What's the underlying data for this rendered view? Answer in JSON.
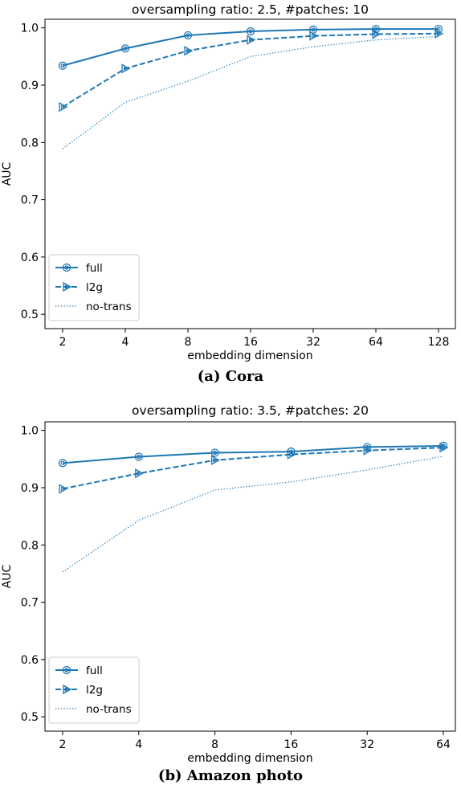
{
  "figures": [
    {
      "caption": "(a) Cora"
    },
    {
      "caption": "(b) Amazon photo"
    }
  ],
  "chart_data": [
    {
      "type": "line",
      "title": "oversampling ratio: 2.5, #patches: 10",
      "xlabel": "embedding dimension",
      "ylabel": "AUC",
      "categories": [
        "2",
        "4",
        "8",
        "16",
        "32",
        "64",
        "128"
      ],
      "ylim": [
        0.475,
        1.015
      ],
      "yticks": [
        "0.5",
        "0.6",
        "0.7",
        "0.8",
        "0.9",
        "1.0"
      ],
      "grid": false,
      "legend_position": "lower-left",
      "color": "#1f77b4",
      "series": [
        {
          "name": "full",
          "style": "solid-circle",
          "values": [
            0.934,
            0.964,
            0.987,
            0.994,
            0.997,
            0.998,
            0.998
          ]
        },
        {
          "name": "l2g",
          "style": "dashed-triangle",
          "values": [
            0.862,
            0.929,
            0.96,
            0.979,
            0.986,
            0.989,
            0.99
          ]
        },
        {
          "name": "no-trans",
          "style": "dotted",
          "values": [
            0.789,
            0.87,
            0.907,
            0.95,
            0.967,
            0.979,
            0.985
          ]
        }
      ]
    },
    {
      "type": "line",
      "title": "oversampling ratio: 3.5, #patches: 20",
      "xlabel": "embedding dimension",
      "ylabel": "AUC",
      "categories": [
        "2",
        "4",
        "8",
        "16",
        "32",
        "64"
      ],
      "ylim": [
        0.475,
        1.015
      ],
      "yticks": [
        "0.5",
        "0.6",
        "0.7",
        "0.8",
        "0.9",
        "1.0"
      ],
      "grid": false,
      "legend_position": "lower-left",
      "color": "#1f77b4",
      "series": [
        {
          "name": "full",
          "style": "solid-circle",
          "values": [
            0.943,
            0.954,
            0.961,
            0.963,
            0.971,
            0.973
          ]
        },
        {
          "name": "l2g",
          "style": "dashed-triangle",
          "values": [
            0.898,
            0.925,
            0.948,
            0.958,
            0.965,
            0.97
          ]
        },
        {
          "name": "no-trans",
          "style": "dotted",
          "values": [
            0.753,
            0.843,
            0.896,
            0.91,
            0.931,
            0.955
          ]
        }
      ]
    }
  ]
}
